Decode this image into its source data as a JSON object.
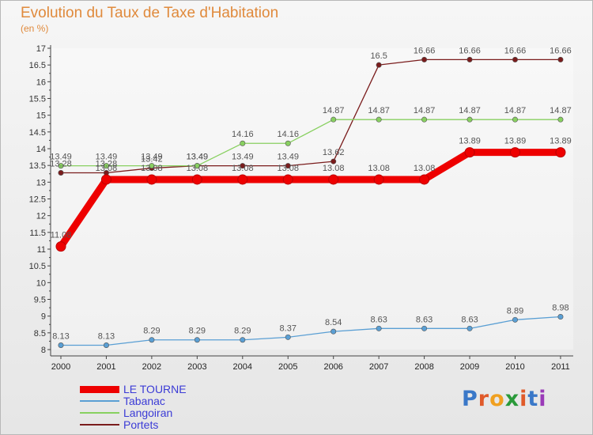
{
  "title": "Evolution du Taux de Taxe d'Habitation",
  "subtitle": "(en %)",
  "logo": {
    "text": "Proxiti",
    "colors": [
      "#3a78c8",
      "#e05a2a",
      "#f0a020",
      "#2a9a3a",
      "#e05a2a",
      "#3a78c8",
      "#9a3ab8"
    ]
  },
  "chart_data": {
    "type": "line",
    "x": [
      "2000",
      "2001",
      "2002",
      "2003",
      "2004",
      "2005",
      "2006",
      "2007",
      "2008",
      "2009",
      "2010",
      "2011"
    ],
    "ylim": [
      8,
      17
    ],
    "yticks": [
      "8",
      "8.5",
      "9",
      "9.5",
      "10",
      "10.5",
      "11",
      "11.5",
      "12",
      "12.5",
      "13",
      "13.5",
      "14",
      "14.5",
      "15",
      "15.5",
      "16",
      "16.5",
      "17"
    ],
    "series": [
      {
        "name": "LE TOURNE",
        "color": "#ee0000",
        "values": [
          11.08,
          13.08,
          13.08,
          13.08,
          13.08,
          13.08,
          13.08,
          13.08,
          13.08,
          13.89,
          13.89,
          13.89
        ],
        "labels": [
          "11.08",
          "13.08",
          "13.08",
          "13.08",
          "13.08",
          "13.08",
          "13.08",
          "13.08",
          "13.08",
          "13.89",
          "13.89",
          "13.89"
        ]
      },
      {
        "name": "Tabanac",
        "color": "#5a9fd4",
        "values": [
          8.13,
          8.13,
          8.29,
          8.29,
          8.29,
          8.37,
          8.54,
          8.63,
          8.63,
          8.63,
          8.89,
          8.98
        ],
        "labels": [
          "8.13",
          "8.13",
          "8.29",
          "8.29",
          "8.29",
          "8.37",
          "8.54",
          "8.63",
          "8.63",
          "8.63",
          "8.89",
          "8.98"
        ]
      },
      {
        "name": "Langoiran",
        "color": "#88d060",
        "values": [
          13.49,
          13.49,
          13.49,
          13.49,
          14.16,
          14.16,
          14.87,
          14.87,
          14.87,
          14.87,
          14.87,
          14.87
        ],
        "labels": [
          "13.49",
          "13.49",
          "13.49",
          "13.49",
          "14.16",
          "14.16",
          "14.87",
          "14.87",
          "14.87",
          "14.87",
          "14.87",
          "14.87"
        ]
      },
      {
        "name": "Portets",
        "color": "#7a1c1c",
        "values": [
          13.28,
          13.28,
          13.42,
          13.49,
          13.49,
          13.49,
          13.62,
          16.5,
          16.66,
          16.66,
          16.66,
          16.66
        ],
        "labels": [
          "13.28",
          "13.28",
          "13.42",
          "13.49",
          "13.49",
          "13.49",
          "13.62",
          "16.5",
          "16.66",
          "16.66",
          "16.66",
          "16.66"
        ]
      }
    ],
    "legend": "bottom-left"
  }
}
